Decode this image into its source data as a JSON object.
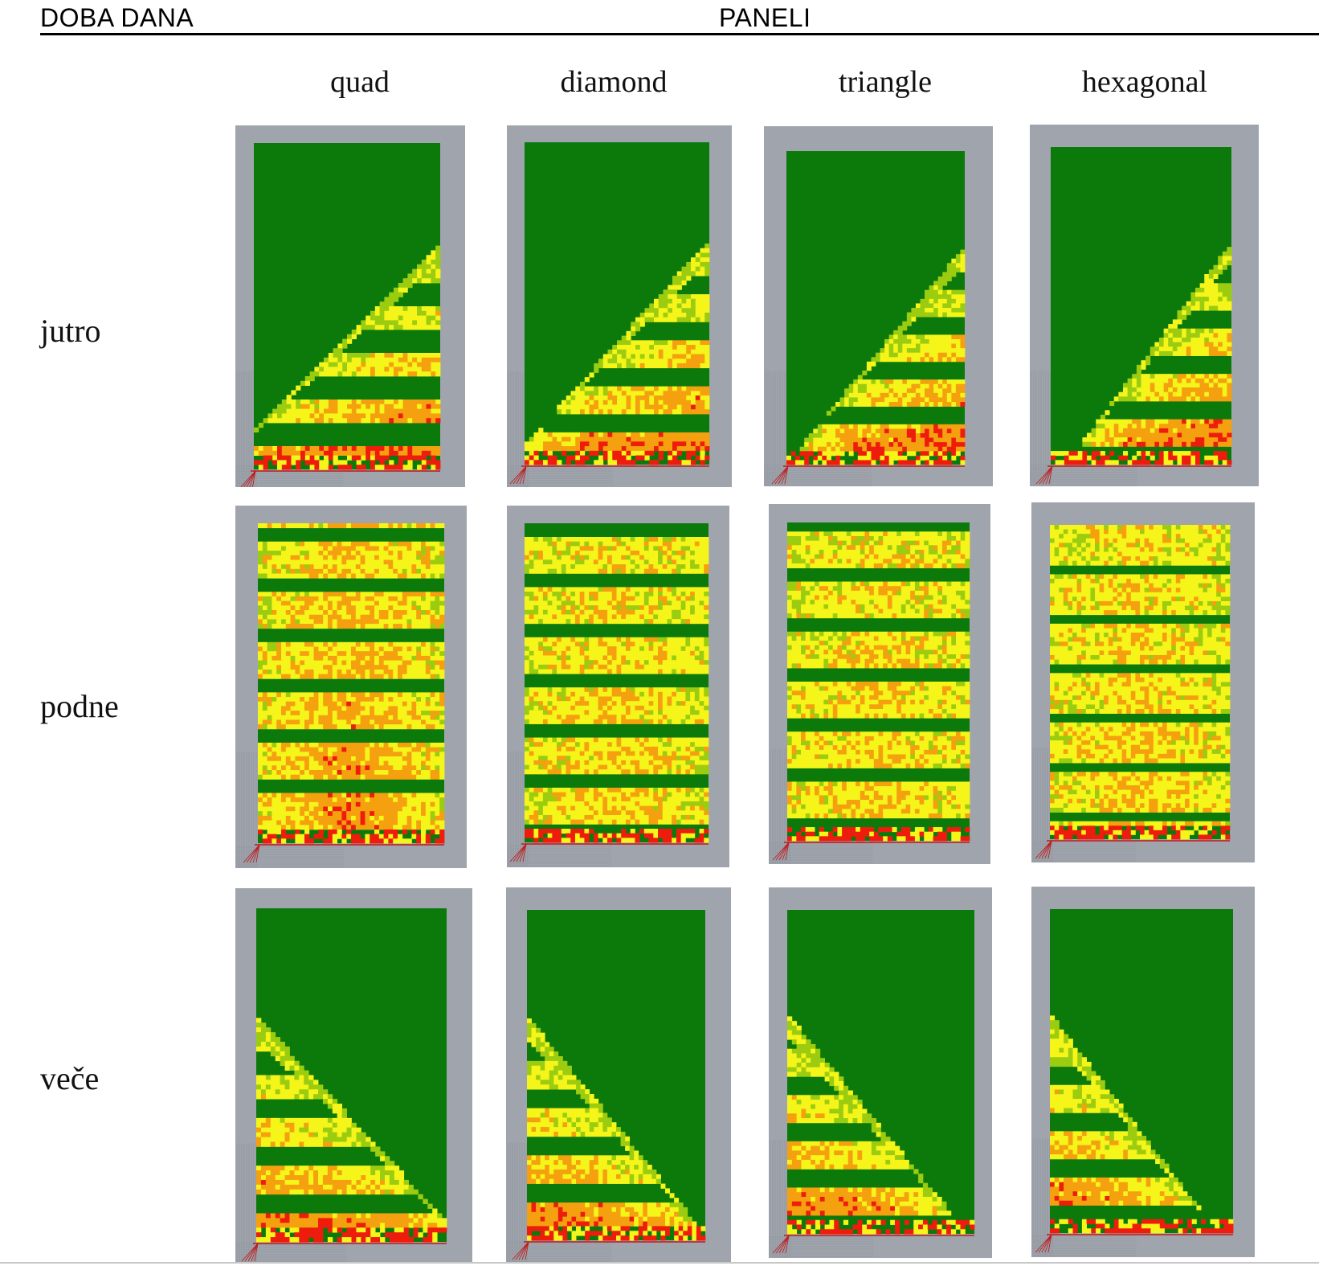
{
  "header": {
    "left_label": "DOBA DANA",
    "center_label": "PANELI"
  },
  "columns": [
    {
      "key": "quad",
      "label": "quad"
    },
    {
      "key": "diamond",
      "label": "diamond"
    },
    {
      "key": "triangle",
      "label": "triangle"
    },
    {
      "key": "hexagonal",
      "label": "hexagonal"
    }
  ],
  "rows": [
    {
      "key": "jutro",
      "label": "jutro",
      "pattern": "morning"
    },
    {
      "key": "podne",
      "label": "podne",
      "pattern": "noon"
    },
    {
      "key": "vece",
      "label": "veče",
      "pattern": "evening"
    }
  ],
  "colors": {
    "frame": "#a0a5ad",
    "green": "#0b7a0b",
    "yellowgreen": "#9ccc10",
    "yellow": "#f5f51a",
    "orange": "#f5a00f",
    "red": "#ee1c0c",
    "axis": "#c0181a"
  }
}
